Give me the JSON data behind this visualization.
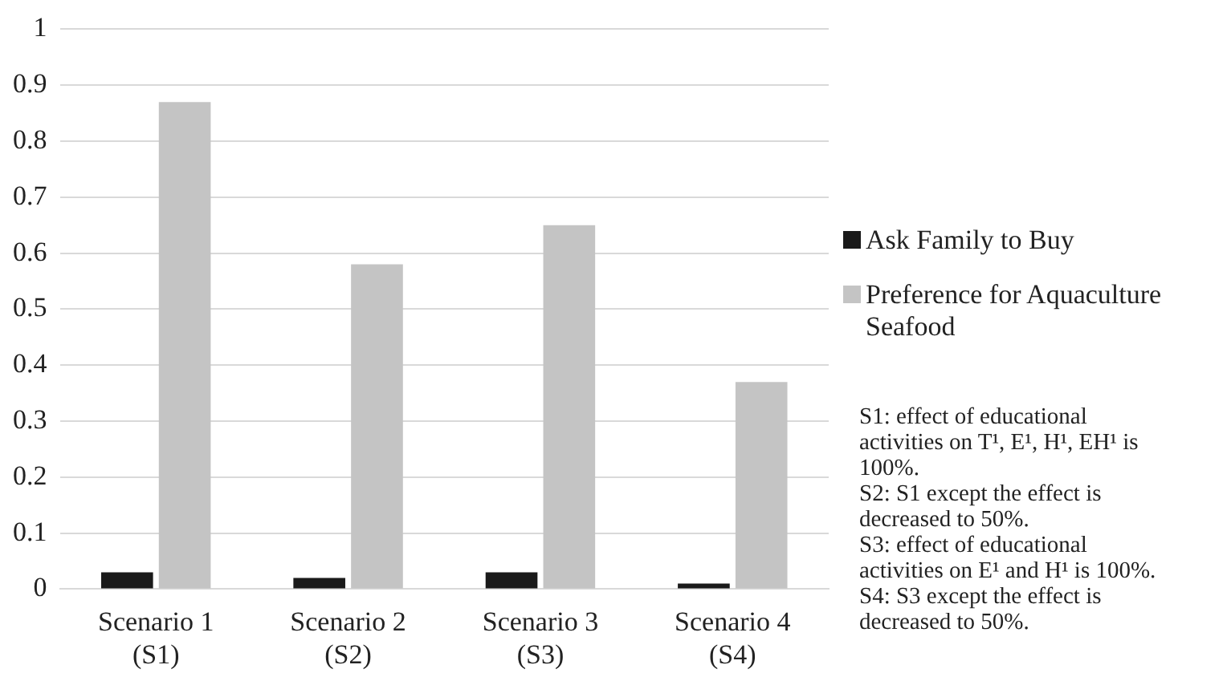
{
  "chart_data": {
    "type": "bar",
    "categories": [
      "Scenario 1\n(S1)",
      "Scenario 2\n(S2)",
      "Scenario 3\n(S3)",
      "Scenario 4\n(S4)"
    ],
    "series": [
      {
        "name": "Ask Family to Buy",
        "color": "#1a1a1a",
        "values": [
          0.03,
          0.02,
          0.03,
          0.01
        ]
      },
      {
        "name": "Preference for Aquaculture Seafood",
        "color": "#c4c4c4",
        "values": [
          0.87,
          0.58,
          0.65,
          0.37
        ]
      }
    ],
    "ylim": [
      0,
      1
    ],
    "yticks": [
      0,
      0.1,
      0.2,
      0.3,
      0.4,
      0.5,
      0.6,
      0.7,
      0.8,
      0.9,
      1
    ],
    "grid": "y",
    "legend": "right",
    "annotations": [
      "S1: effect of educational activities on T¹, E¹, H¹, EH¹ is 100%.",
      "S2: S1 except the effect is decreased to 50%.",
      "S3: effect of educational activities on E¹ and H¹ is 100%.",
      "S4: S3 except the effect is decreased to 50%."
    ]
  }
}
